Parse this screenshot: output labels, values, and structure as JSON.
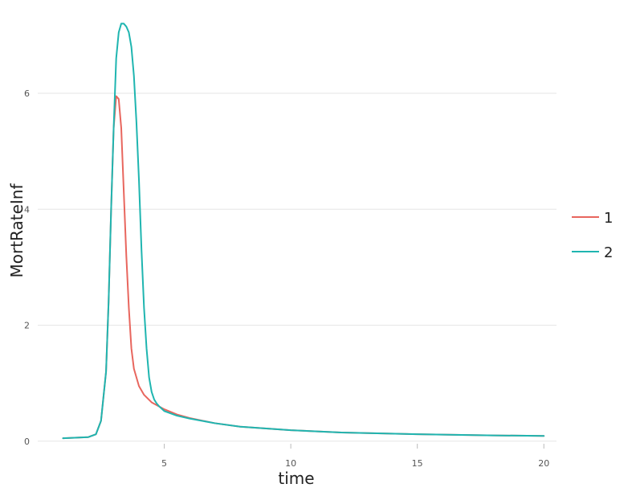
{
  "chart_data": {
    "type": "line",
    "xlabel": "time",
    "ylabel": "MortRateInf",
    "xlim": [
      0,
      20.5
    ],
    "ylim": [
      -0.1,
      7.4
    ],
    "x_ticks": [
      5,
      10,
      15,
      20
    ],
    "y_ticks": [
      0,
      2,
      4,
      6
    ],
    "grid": true,
    "legend_position": "right",
    "series": [
      {
        "name": "1",
        "color": "#E8665E",
        "x": [
          1,
          2,
          2.3,
          2.5,
          2.7,
          2.8,
          2.9,
          3.0,
          3.1,
          3.2,
          3.3,
          3.4,
          3.5,
          3.6,
          3.7,
          3.8,
          4.0,
          4.2,
          4.5,
          5.0,
          5.5,
          6,
          7,
          8,
          10,
          12,
          15,
          18,
          20
        ],
        "y": [
          0.05,
          0.07,
          0.12,
          0.35,
          1.2,
          2.4,
          4.0,
          5.4,
          5.95,
          5.9,
          5.4,
          4.3,
          3.2,
          2.3,
          1.6,
          1.25,
          0.95,
          0.8,
          0.67,
          0.55,
          0.46,
          0.4,
          0.31,
          0.25,
          0.19,
          0.15,
          0.12,
          0.1,
          0.09
        ]
      },
      {
        "name": "2",
        "color": "#1FB5B0",
        "x": [
          1,
          2,
          2.3,
          2.5,
          2.7,
          2.8,
          2.9,
          3.0,
          3.1,
          3.2,
          3.3,
          3.4,
          3.5,
          3.6,
          3.7,
          3.8,
          3.9,
          4.0,
          4.1,
          4.2,
          4.3,
          4.4,
          4.5,
          4.6,
          4.7,
          4.8,
          5.0,
          5.5,
          6,
          7,
          8,
          10,
          12,
          15,
          18,
          20
        ],
        "y": [
          0.05,
          0.07,
          0.12,
          0.35,
          1.2,
          2.4,
          4.0,
          5.4,
          6.6,
          7.05,
          7.2,
          7.2,
          7.15,
          7.05,
          6.8,
          6.3,
          5.5,
          4.5,
          3.3,
          2.3,
          1.6,
          1.1,
          0.85,
          0.72,
          0.65,
          0.6,
          0.52,
          0.44,
          0.39,
          0.31,
          0.25,
          0.19,
          0.15,
          0.12,
          0.1,
          0.09
        ]
      }
    ]
  }
}
